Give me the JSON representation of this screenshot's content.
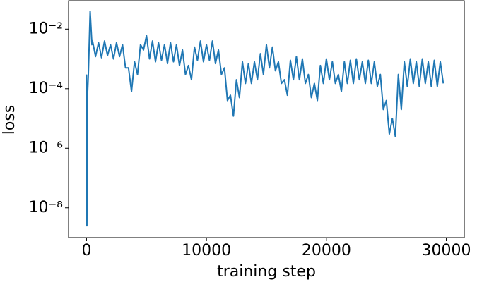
{
  "chart_data": {
    "type": "line",
    "xlabel": "training step",
    "ylabel": "loss",
    "ylog": true,
    "xlim": [
      -1500,
      31500
    ],
    "ylim": [
      1e-09,
      0.09
    ],
    "xticks": [
      0,
      10000,
      20000,
      30000
    ],
    "yticks": [
      {
        "value": 1e-08,
        "label": "10⁻⁸"
      },
      {
        "value": 1e-06,
        "label": "10⁻⁶"
      },
      {
        "value": 0.0001,
        "label": "10⁻⁴"
      },
      {
        "value": 0.01,
        "label": "10⁻²"
      }
    ],
    "series": [
      {
        "color": "#1f77b4",
        "x": [
          0,
          30,
          60,
          150,
          300,
          450,
          500,
          750,
          1000,
          1250,
          1500,
          1750,
          2000,
          2250,
          2500,
          2750,
          3000,
          3250,
          3500,
          3750,
          4000,
          4250,
          4500,
          4750,
          5000,
          5250,
          5500,
          5750,
          6000,
          6250,
          6500,
          6750,
          7000,
          7250,
          7500,
          7750,
          8000,
          8250,
          8500,
          8750,
          9000,
          9250,
          9500,
          9750,
          10000,
          10250,
          10500,
          10750,
          11000,
          11250,
          11500,
          11750,
          12000,
          12250,
          12500,
          12750,
          13000,
          13250,
          13500,
          13750,
          14000,
          14250,
          14500,
          14750,
          15000,
          15250,
          15500,
          15750,
          16000,
          16250,
          16500,
          16750,
          17000,
          17250,
          17500,
          17750,
          18000,
          18250,
          18500,
          18750,
          19000,
          19250,
          19500,
          19750,
          20000,
          20250,
          20500,
          20750,
          21000,
          21250,
          21500,
          21750,
          22000,
          22250,
          22500,
          22750,
          23000,
          23250,
          23500,
          23750,
          24000,
          24250,
          24500,
          24750,
          25000,
          25250,
          25500,
          25750,
          26000,
          26250,
          26500,
          26750,
          27000,
          27250,
          27500,
          27750,
          28000,
          28250,
          28500,
          28750,
          29000,
          29250,
          29500,
          29750
        ],
        "values": [
          0.0003,
          2.5e-09,
          4e-05,
          0.0003,
          0.04,
          0.003,
          0.004,
          0.0012,
          0.0035,
          0.0011,
          0.004,
          0.0013,
          0.003,
          0.001,
          0.0035,
          0.0012,
          0.003,
          0.0005,
          0.0005,
          8e-05,
          0.0008,
          0.0003,
          0.003,
          0.002,
          0.006,
          0.001,
          0.004,
          0.0008,
          0.0035,
          0.0009,
          0.003,
          0.0007,
          0.0035,
          0.0008,
          0.003,
          0.0006,
          0.002,
          0.0003,
          0.0006,
          0.0002,
          0.0025,
          0.0009,
          0.004,
          0.0008,
          0.003,
          0.0009,
          0.004,
          0.0007,
          0.002,
          0.0003,
          0.0005,
          4e-05,
          6e-05,
          1.2e-05,
          0.0002,
          5e-05,
          0.0008,
          0.00015,
          0.0007,
          0.00015,
          0.0008,
          0.0002,
          0.0015,
          0.0003,
          0.003,
          0.0005,
          0.0025,
          0.0004,
          0.0008,
          0.00015,
          0.0002,
          6e-05,
          0.0009,
          0.0002,
          0.0012,
          0.0002,
          0.001,
          0.00015,
          0.0003,
          5e-05,
          0.00015,
          4e-05,
          0.0006,
          0.00015,
          0.001,
          0.0002,
          0.0008,
          0.00015,
          0.0003,
          8e-05,
          0.0008,
          0.00015,
          0.0009,
          0.00015,
          0.001,
          0.0002,
          0.0008,
          0.00015,
          0.0009,
          0.00015,
          0.0008,
          0.00012,
          0.0003,
          2e-05,
          4e-05,
          3e-06,
          1e-05,
          2.5e-06,
          0.0003,
          2e-05,
          0.0008,
          0.00012,
          0.001,
          0.00015,
          0.0008,
          0.00012,
          0.001,
          0.00015,
          0.0008,
          0.00012,
          0.0009,
          0.00012,
          0.0008,
          0.00015
        ]
      }
    ]
  }
}
